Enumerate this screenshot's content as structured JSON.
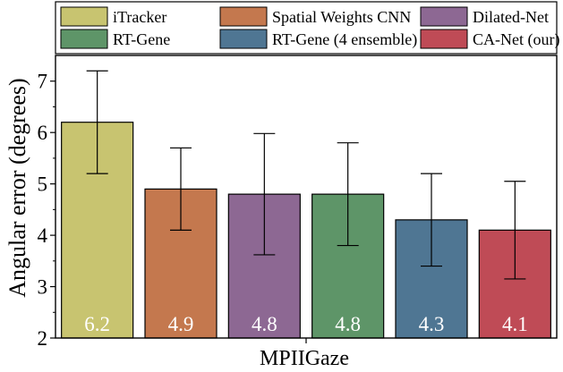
{
  "chart_data": {
    "type": "bar",
    "xlabel": "MPIIGaze",
    "ylabel": "Angular error (degrees)",
    "ylim": [
      2,
      7.5
    ],
    "yticks": [
      2,
      3,
      4,
      5,
      6,
      7
    ],
    "legend_position": "top",
    "series": [
      {
        "name": "iTracker",
        "value": 6.2,
        "value_label": "6.2",
        "error_low": 5.2,
        "error_high": 7.2,
        "color": "#c8c470"
      },
      {
        "name": "Spatial Weights CNN",
        "value": 4.9,
        "value_label": "4.9",
        "error_low": 4.1,
        "error_high": 5.7,
        "color": "#c4784e"
      },
      {
        "name": "Dilated-Net",
        "value": 4.8,
        "value_label": "4.8",
        "error_low": 3.62,
        "error_high": 5.98,
        "color": "#8d6893"
      },
      {
        "name": "RT-Gene",
        "value": 4.8,
        "value_label": "4.8",
        "error_low": 3.8,
        "error_high": 5.8,
        "color": "#5e9568"
      },
      {
        "name": "RT-Gene (4 ensemble)",
        "value": 4.3,
        "value_label": "4.3",
        "error_low": 3.4,
        "error_high": 5.2,
        "color": "#4f7693"
      },
      {
        "name": "CA-Net (our)",
        "value": 4.1,
        "value_label": "4.1",
        "error_low": 3.15,
        "error_high": 5.05,
        "color": "#bf4b56"
      }
    ]
  }
}
